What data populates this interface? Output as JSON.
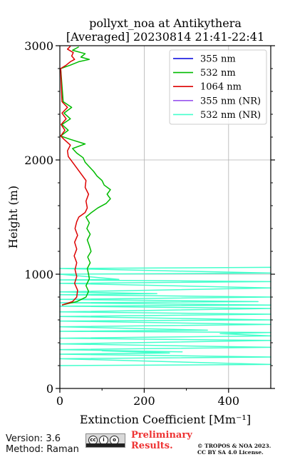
{
  "chart_data": {
    "type": "line",
    "title_line1": "pollyxt_noa at Antikythera",
    "title_line2": "[Averaged] 20230814 21:41-22:41",
    "xlabel": "Extinction Coefficient [Mm⁻¹]",
    "ylabel": "Height (m)",
    "xlim": [
      0,
      500
    ],
    "ylim": [
      0,
      3000
    ],
    "xticks": [
      0,
      200,
      400
    ],
    "yticks": [
      0,
      1000,
      2000,
      3000
    ],
    "grid": true,
    "legend_position": "top-right",
    "series": [
      {
        "name": "355 nm",
        "color": "#0000dd",
        "points": []
      },
      {
        "name": "532 nm",
        "color": "#00bb00",
        "points": [
          [
            5,
            730
          ],
          [
            40,
            760
          ],
          [
            62,
            800
          ],
          [
            68,
            850
          ],
          [
            62,
            900
          ],
          [
            70,
            960
          ],
          [
            68,
            1000
          ],
          [
            65,
            1050
          ],
          [
            72,
            1100
          ],
          [
            66,
            1150
          ],
          [
            74,
            1200
          ],
          [
            70,
            1250
          ],
          [
            65,
            1300
          ],
          [
            72,
            1350
          ],
          [
            64,
            1400
          ],
          [
            70,
            1450
          ],
          [
            62,
            1500
          ],
          [
            75,
            1540
          ],
          [
            90,
            1580
          ],
          [
            110,
            1620
          ],
          [
            120,
            1660
          ],
          [
            112,
            1700
          ],
          [
            120,
            1740
          ],
          [
            105,
            1780
          ],
          [
            100,
            1820
          ],
          [
            88,
            1860
          ],
          [
            80,
            1900
          ],
          [
            70,
            1940
          ],
          [
            60,
            1980
          ],
          [
            55,
            2020
          ],
          [
            40,
            2060
          ],
          [
            30,
            2100
          ],
          [
            60,
            2140
          ],
          [
            25,
            2180
          ],
          [
            2,
            2210
          ],
          [
            20,
            2260
          ],
          [
            5,
            2310
          ],
          [
            25,
            2360
          ],
          [
            10,
            2410
          ],
          [
            28,
            2460
          ],
          [
            8,
            2510
          ],
          [
            2,
            2800
          ],
          [
            25,
            2830
          ],
          [
            45,
            2860
          ],
          [
            70,
            2880
          ],
          [
            50,
            2900
          ],
          [
            60,
            2930
          ],
          [
            30,
            2960
          ],
          [
            45,
            2990
          ]
        ]
      },
      {
        "name": "1064 nm",
        "color": "#dd0000",
        "points": [
          [
            5,
            730
          ],
          [
            30,
            760
          ],
          [
            40,
            800
          ],
          [
            42,
            860
          ],
          [
            35,
            920
          ],
          [
            40,
            980
          ],
          [
            36,
            1040
          ],
          [
            40,
            1100
          ],
          [
            34,
            1160
          ],
          [
            40,
            1220
          ],
          [
            35,
            1280
          ],
          [
            42,
            1340
          ],
          [
            36,
            1400
          ],
          [
            40,
            1460
          ],
          [
            45,
            1500
          ],
          [
            60,
            1540
          ],
          [
            65,
            1580
          ],
          [
            62,
            1640
          ],
          [
            68,
            1700
          ],
          [
            60,
            1760
          ],
          [
            62,
            1820
          ],
          [
            50,
            1880
          ],
          [
            40,
            1930
          ],
          [
            30,
            1980
          ],
          [
            20,
            2030
          ],
          [
            18,
            2080
          ],
          [
            25,
            2130
          ],
          [
            10,
            2180
          ],
          [
            2,
            2210
          ],
          [
            12,
            2260
          ],
          [
            3,
            2310
          ],
          [
            15,
            2360
          ],
          [
            5,
            2410
          ],
          [
            18,
            2460
          ],
          [
            5,
            2510
          ],
          [
            2,
            2800
          ],
          [
            15,
            2830
          ],
          [
            25,
            2860
          ],
          [
            35,
            2880
          ],
          [
            28,
            2910
          ],
          [
            32,
            2940
          ],
          [
            18,
            2970
          ],
          [
            25,
            2995
          ]
        ]
      },
      {
        "name": "355 nm (NR)",
        "color": "#9955ee",
        "points": []
      },
      {
        "name": "532 nm (NR)",
        "color": "#44ffcc",
        "points": [
          [
            0,
            200
          ],
          [
            500,
            210
          ],
          [
            0,
            260
          ],
          [
            500,
            275
          ],
          [
            0,
            300
          ],
          [
            260,
            310
          ],
          [
            100,
            330
          ],
          [
            290,
            320
          ],
          [
            0,
            340
          ],
          [
            500,
            360
          ],
          [
            0,
            390
          ],
          [
            500,
            420
          ],
          [
            0,
            440
          ],
          [
            500,
            460
          ],
          [
            380,
            480
          ],
          [
            500,
            490
          ],
          [
            0,
            500
          ],
          [
            350,
            510
          ],
          [
            0,
            540
          ],
          [
            500,
            560
          ],
          [
            0,
            590
          ],
          [
            500,
            600
          ],
          [
            0,
            630
          ],
          [
            500,
            650
          ],
          [
            0,
            670
          ],
          [
            500,
            700
          ],
          [
            0,
            720
          ],
          [
            500,
            730
          ],
          [
            0,
            750
          ],
          [
            470,
            760
          ],
          [
            0,
            780
          ],
          [
            500,
            800
          ],
          [
            0,
            820
          ],
          [
            230,
            830
          ],
          [
            0,
            845
          ],
          [
            500,
            880
          ],
          [
            0,
            920
          ],
          [
            500,
            935
          ],
          [
            0,
            950
          ],
          [
            140,
            955
          ],
          [
            0,
            1000
          ],
          [
            500,
            1010
          ],
          [
            0,
            1050
          ],
          [
            500,
            1060
          ]
        ]
      }
    ]
  },
  "footer": {
    "version": "Version: 3.6",
    "method": "Method: Raman",
    "preliminary_line1": "Preliminary",
    "preliminary_line2": "Results.",
    "copyright_line1": "© TROPOS & NOA 2023.",
    "copyright_line2": "CC BY SA 4.0 License."
  }
}
